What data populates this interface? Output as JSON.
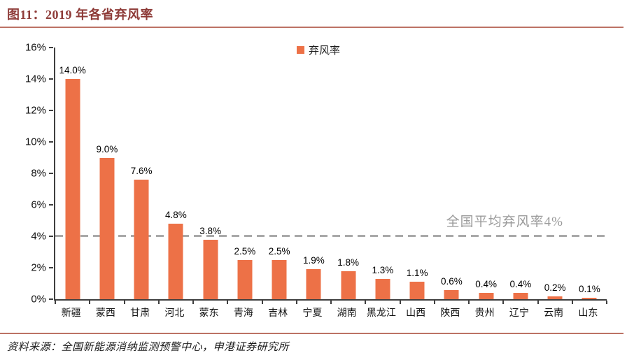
{
  "page": {
    "title": "图11：2019 年各省弃风率",
    "source_note": "资料来源：全国新能源消纳监测预警中心，申港证券研究所"
  },
  "legend": {
    "label": "弃风率"
  },
  "colors": {
    "bar": "#ED7147",
    "title_text": "#8E3B38",
    "divider_line": "#BC7265",
    "axis": "#3F3F3F",
    "average_line": "#A9A9A9",
    "annotation_text": "#9A9A9A"
  },
  "chart_data": {
    "type": "bar",
    "title": "2019 年各省弃风率",
    "legend": [
      "弃风率"
    ],
    "legend_position": "top-center",
    "categories": [
      "新疆",
      "蒙西",
      "甘肃",
      "河北",
      "蒙东",
      "青海",
      "吉林",
      "宁夏",
      "湖南",
      "黑龙江",
      "山西",
      "陕西",
      "贵州",
      "辽宁",
      "云南",
      "山东"
    ],
    "values": [
      14.0,
      9.0,
      7.6,
      4.8,
      3.8,
      2.5,
      2.5,
      1.9,
      1.8,
      1.3,
      1.1,
      0.6,
      0.4,
      0.4,
      0.2,
      0.1
    ],
    "value_labels": [
      "14.0%",
      "9.0%",
      "7.6%",
      "4.8%",
      "3.8%",
      "2.5%",
      "2.5%",
      "1.9%",
      "1.8%",
      "1.3%",
      "1.1%",
      "0.6%",
      "0.4%",
      "0.4%",
      "0.2%",
      "0.1%"
    ],
    "xlabel": "",
    "ylabel": "",
    "ylim": [
      0,
      16
    ],
    "yticks": [
      {
        "value": 0,
        "label": "0%"
      },
      {
        "value": 2,
        "label": "2%"
      },
      {
        "value": 4,
        "label": "4%"
      },
      {
        "value": 6,
        "label": "6%"
      },
      {
        "value": 8,
        "label": "8%"
      },
      {
        "value": 10,
        "label": "10%"
      },
      {
        "value": 12,
        "label": "12%"
      },
      {
        "value": 14,
        "label": "14%"
      },
      {
        "value": 16,
        "label": "16%"
      }
    ],
    "grid": false,
    "average_line": {
      "value": 4,
      "label": "全国平均弃风率4%"
    }
  }
}
